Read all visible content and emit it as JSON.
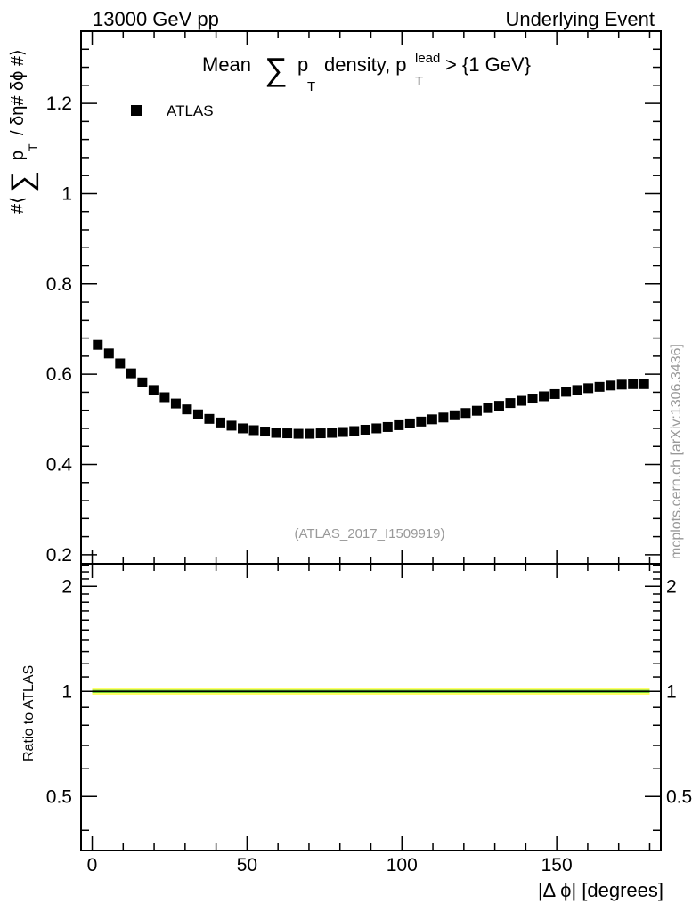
{
  "header": {
    "left": "13000 GeV pp",
    "right": "Underlying Event"
  },
  "side_label": "mcplots.cern.ch [arXiv:1306.3436]",
  "analysis_id": "(ATLAS_2017_I1509919)",
  "colors": {
    "data_marker": "#000000",
    "band_outer": "#ffff66",
    "band_inner": "#66cc33",
    "text_grey": "#999999"
  },
  "chart_data": [
    {
      "type": "scatter",
      "title": "Mean ∑ pT density, pT lead > {1 GeV}",
      "title_parts": {
        "mean": "Mean",
        "sum": "∑",
        "p": "p",
        "sub_t": "T",
        "density": "density, p",
        "sup_lead": "lead",
        "sub_t2": "T",
        "cut": "> {1 GeV}"
      },
      "ylabel": "#⟨ ∑ pT / δη# δϕ #⟩",
      "ylabel_parts": {
        "open": "#⟨",
        "sum": "∑",
        "p": "p",
        "sub_t": "T",
        "rest": "/ δη# δϕ #⟩"
      },
      "xlabel": "|Δ ϕ| [degrees]",
      "xlim": [
        -3.6,
        183.6
      ],
      "ylim": [
        0.18,
        1.36
      ],
      "yticks": [
        0.2,
        0.4,
        0.6,
        0.8,
        1,
        1.2
      ],
      "ytick_labels": [
        "0.2",
        "0.4",
        "0.6",
        "0.8",
        "1",
        "1.2"
      ],
      "legend": {
        "placement": "top-left",
        "entries": [
          "ATLAS"
        ]
      },
      "series": [
        {
          "name": "ATLAS",
          "x": [
            1.8,
            5.4,
            9.0,
            12.6,
            16.2,
            19.8,
            23.4,
            27.0,
            30.6,
            34.2,
            37.8,
            41.4,
            45.0,
            48.6,
            52.2,
            55.8,
            59.4,
            63.0,
            66.6,
            70.2,
            73.8,
            77.4,
            81.0,
            84.6,
            88.2,
            91.8,
            95.4,
            99.0,
            102.6,
            106.2,
            109.8,
            113.4,
            117.0,
            120.6,
            124.2,
            127.8,
            131.4,
            135.0,
            138.6,
            142.2,
            145.8,
            149.4,
            153.0,
            156.6,
            160.2,
            163.8,
            167.4,
            171.0,
            174.6,
            178.2
          ],
          "y": [
            0.665,
            0.646,
            0.624,
            0.602,
            0.582,
            0.565,
            0.549,
            0.535,
            0.522,
            0.511,
            0.501,
            0.493,
            0.486,
            0.48,
            0.476,
            0.473,
            0.47,
            0.469,
            0.468,
            0.468,
            0.469,
            0.47,
            0.472,
            0.474,
            0.477,
            0.48,
            0.483,
            0.487,
            0.491,
            0.495,
            0.5,
            0.504,
            0.509,
            0.514,
            0.519,
            0.525,
            0.53,
            0.536,
            0.541,
            0.546,
            0.551,
            0.556,
            0.561,
            0.565,
            0.569,
            0.572,
            0.575,
            0.577,
            0.578,
            0.578
          ]
        }
      ]
    },
    {
      "type": "line",
      "ylabel": "Ratio to ATLAS",
      "xlabel": "|Δ ϕ| [degrees]",
      "xlim": [
        -3.6,
        183.6
      ],
      "ylim": [
        0.35,
        2.32
      ],
      "yticks": [
        0.5,
        1,
        2
      ],
      "ytick_labels": [
        "0.5",
        "1",
        "2"
      ],
      "xticks": [
        0,
        50,
        100,
        150
      ],
      "xtick_labels": [
        "0",
        "50",
        "100",
        "150"
      ],
      "series": [
        {
          "name": "ATLAS",
          "x": [
            0,
            180
          ],
          "y": [
            1,
            1
          ],
          "band": [
            0.99,
            1.01
          ]
        }
      ]
    }
  ]
}
